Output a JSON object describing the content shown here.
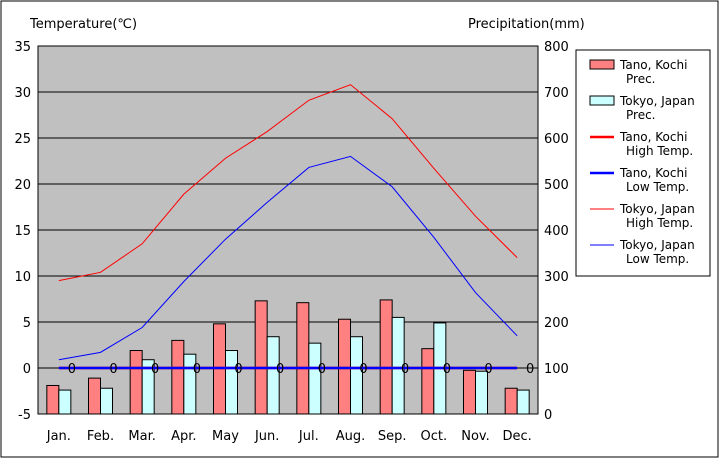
{
  "chart_data": {
    "type": "bar",
    "left_axis_title": "Temperature(℃)",
    "right_axis_title": "Precipitation(mm)",
    "categories": [
      "Jan.",
      "Feb.",
      "Mar.",
      "Apr.",
      "May",
      "Jun.",
      "Jul.",
      "Aug.",
      "Sep.",
      "Oct.",
      "Nov.",
      "Dec."
    ],
    "left_axis": {
      "min": -5,
      "max": 35,
      "ticks": [
        -5,
        0,
        5,
        10,
        15,
        20,
        25,
        30,
        35
      ]
    },
    "right_axis": {
      "min": 0,
      "max": 800,
      "ticks": [
        0,
        100,
        200,
        300,
        400,
        500,
        600,
        700,
        800
      ]
    },
    "grid": true,
    "legend_placement": "right",
    "series": [
      {
        "name": "Tano, Kochi Prec.",
        "kind": "bar",
        "axis": "right",
        "color": "#ff8080",
        "values": [
          62,
          78,
          138,
          160,
          196,
          246,
          242,
          206,
          248,
          142,
          95,
          56
        ]
      },
      {
        "name": "Tokyo, Japan Prec.",
        "kind": "bar",
        "axis": "right",
        "color": "#ccffff",
        "values": [
          52,
          56,
          118,
          130,
          138,
          168,
          154,
          168,
          210,
          198,
          93,
          52
        ]
      },
      {
        "name": "Tano, Kochi High Temp.",
        "kind": "line",
        "axis": "left",
        "color": "#ff0000",
        "width": 2.5,
        "values": [
          0,
          0,
          0,
          0,
          0,
          0,
          0,
          0,
          0,
          0,
          0,
          0
        ]
      },
      {
        "name": "Tano, Kochi Low Temp.",
        "kind": "line",
        "axis": "left",
        "color": "#0000ff",
        "width": 2.5,
        "values": [
          0,
          0,
          0,
          0,
          0,
          0,
          0,
          0,
          0,
          0,
          0,
          0
        ]
      },
      {
        "name": "Tokyo, Japan High Temp.",
        "kind": "line",
        "axis": "left",
        "color": "#ff0000",
        "width": 1,
        "values": [
          9.5,
          10.4,
          13.5,
          18.9,
          22.8,
          25.7,
          29.1,
          30.8,
          27.1,
          21.7,
          16.5,
          12.0
        ]
      },
      {
        "name": "Tokyo, Japan Low Temp.",
        "kind": "line",
        "axis": "left",
        "color": "#0000ff",
        "width": 1,
        "values": [
          0.9,
          1.7,
          4.4,
          9.4,
          14.0,
          18.0,
          21.8,
          23.0,
          19.7,
          14.2,
          8.2,
          3.5
        ]
      }
    ],
    "point_labels": [
      {
        "series": "Tano, Kochi High Temp.",
        "values": [
          "0",
          "0",
          "0",
          "0",
          "0",
          "0",
          "0",
          "0",
          "0",
          "0",
          "0",
          "0"
        ]
      }
    ]
  }
}
